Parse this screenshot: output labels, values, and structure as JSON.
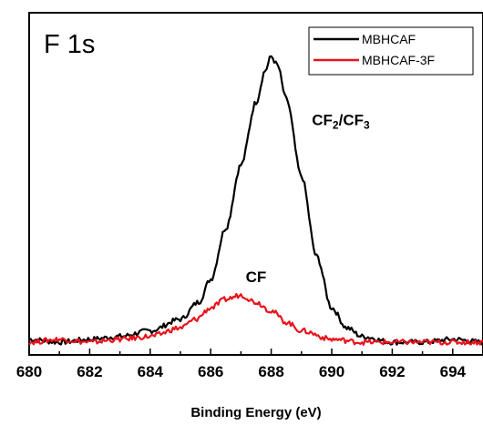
{
  "chart_data": {
    "type": "line",
    "title": "F 1s",
    "xlabel": "Binding Energy (eV)",
    "ylabel": "",
    "xlim": [
      680,
      695
    ],
    "x_ticks": [
      "680",
      "682",
      "684",
      "686",
      "688",
      "690",
      "692",
      "694"
    ],
    "y_ticks": [],
    "grid": false,
    "legend_position": "top-right",
    "series": [
      {
        "name": "MBHCAF",
        "color": "#000000",
        "points": [
          [
            680.0,
            0.01
          ],
          [
            681.0,
            0.0
          ],
          [
            682.0,
            0.01
          ],
          [
            683.0,
            0.02
          ],
          [
            684.0,
            0.04
          ],
          [
            685.0,
            0.08
          ],
          [
            685.6,
            0.14
          ],
          [
            686.0,
            0.22
          ],
          [
            686.5,
            0.4
          ],
          [
            687.0,
            0.62
          ],
          [
            687.5,
            0.84
          ],
          [
            687.8,
            0.95
          ],
          [
            688.0,
            1.0
          ],
          [
            688.2,
            0.97
          ],
          [
            688.5,
            0.85
          ],
          [
            689.0,
            0.58
          ],
          [
            689.5,
            0.3
          ],
          [
            690.0,
            0.12
          ],
          [
            690.5,
            0.05
          ],
          [
            691.0,
            0.02
          ],
          [
            692.0,
            0.0
          ],
          [
            693.0,
            0.0
          ],
          [
            694.0,
            0.01
          ],
          [
            695.0,
            0.0
          ]
        ]
      },
      {
        "name": "MBHCAF-3F",
        "color": "#e8141c",
        "points": [
          [
            680.0,
            0.0
          ],
          [
            681.0,
            0.01
          ],
          [
            682.0,
            0.0
          ],
          [
            683.0,
            0.01
          ],
          [
            684.0,
            0.02
          ],
          [
            685.0,
            0.05
          ],
          [
            685.5,
            0.08
          ],
          [
            686.0,
            0.12
          ],
          [
            686.5,
            0.15
          ],
          [
            687.0,
            0.165
          ],
          [
            687.5,
            0.14
          ],
          [
            688.0,
            0.11
          ],
          [
            688.5,
            0.07
          ],
          [
            689.0,
            0.04
          ],
          [
            690.0,
            0.01
          ],
          [
            691.0,
            0.0
          ],
          [
            692.0,
            0.0
          ],
          [
            693.0,
            0.0
          ],
          [
            694.0,
            0.0
          ],
          [
            695.0,
            0.0
          ]
        ]
      }
    ],
    "annotations": [
      {
        "x": 687.5,
        "y": 0.21,
        "main": "CF",
        "sub": ""
      },
      {
        "x": 690.3,
        "y": 0.76,
        "main": "CF",
        "sub": "2",
        "main2": "/CF",
        "sub2": "3"
      }
    ]
  }
}
